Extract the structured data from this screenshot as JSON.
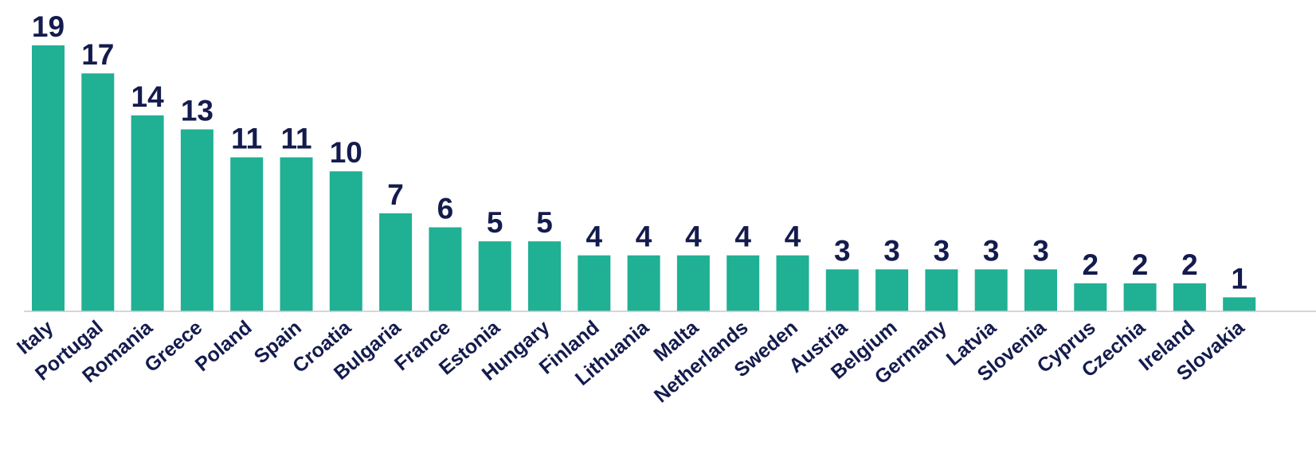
{
  "colors": {
    "bar": "#20b094",
    "value_label": "#141b4d",
    "category_label": "#141b4d",
    "axis": "#c8c8c8"
  },
  "chart_data": {
    "type": "bar",
    "title": "",
    "xlabel": "",
    "ylabel": "",
    "ylim": [
      0,
      19
    ],
    "grid": false,
    "legend": "none",
    "categories": [
      "Italy",
      "Portugal",
      "Romania",
      "Greece",
      "Poland",
      "Spain",
      "Croatia",
      "Bulgaria",
      "France",
      "Estonia",
      "Hungary",
      "Finland",
      "Lithuania",
      "Malta",
      "Netherlands",
      "Sweden",
      "Austria",
      "Belgium",
      "Germany",
      "Latvia",
      "Slovenia",
      "Cyprus",
      "Czechia",
      "Ireland",
      "Slovakia"
    ],
    "values": [
      19,
      17,
      14,
      13,
      11,
      11,
      10,
      7,
      6,
      5,
      5,
      4,
      4,
      4,
      4,
      4,
      3,
      3,
      3,
      3,
      3,
      2,
      2,
      2,
      1
    ]
  }
}
